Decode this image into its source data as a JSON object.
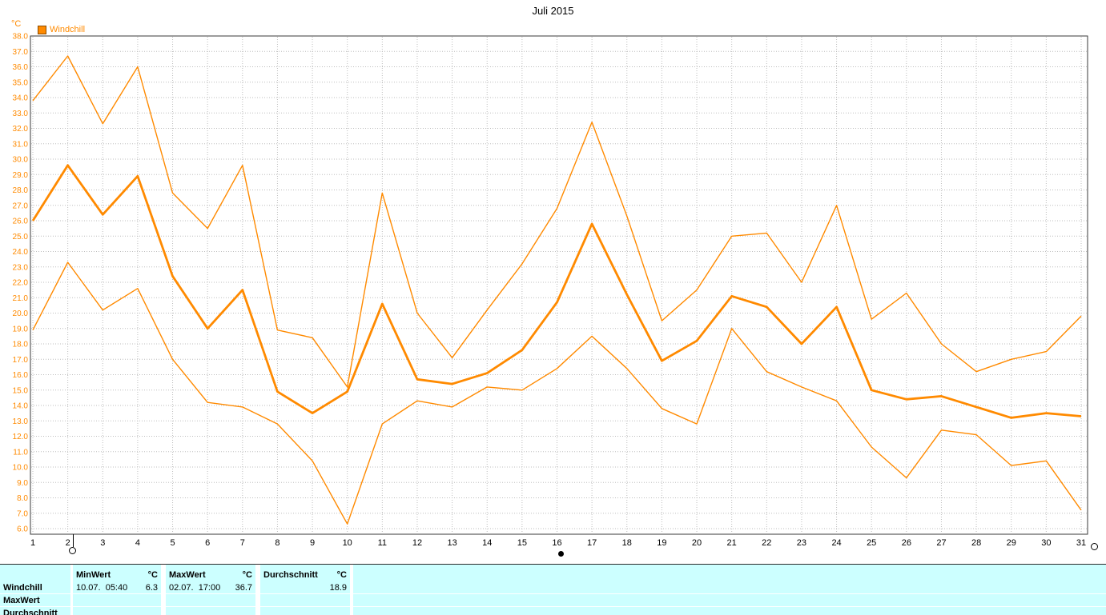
{
  "title": "Juli 2015",
  "y_unit": "°C",
  "legend": {
    "label": "Windchill",
    "color": "#ff8a00"
  },
  "chart_data": {
    "type": "line",
    "title": "Juli 2015",
    "xlabel": "",
    "ylabel": "°C",
    "ylim": [
      6,
      38
    ],
    "ytick_step": 1,
    "grid": true,
    "line_color": "#ff8a00",
    "x": [
      1,
      2,
      3,
      4,
      5,
      6,
      7,
      8,
      9,
      10,
      11,
      12,
      13,
      14,
      15,
      16,
      17,
      18,
      19,
      20,
      21,
      22,
      23,
      24,
      25,
      26,
      27,
      28,
      29,
      30,
      31
    ],
    "series": [
      {
        "name": "MaxWert",
        "thick": false,
        "values": [
          33.8,
          36.7,
          32.3,
          36.0,
          27.8,
          25.5,
          29.6,
          18.9,
          18.4,
          15.2,
          27.8,
          20.0,
          17.1,
          20.2,
          23.2,
          26.8,
          32.4,
          26.3,
          19.5,
          21.5,
          25.0,
          25.2,
          22.0,
          27.0,
          19.6,
          21.3,
          18.0,
          16.2,
          17.0,
          17.5,
          19.8
        ]
      },
      {
        "name": "Durchschnitt",
        "thick": true,
        "values": [
          26.0,
          29.6,
          26.4,
          28.9,
          22.4,
          19.0,
          21.5,
          14.9,
          13.5,
          14.9,
          20.6,
          15.7,
          15.4,
          16.1,
          17.6,
          20.7,
          25.8,
          21.2,
          16.9,
          18.2,
          21.1,
          20.4,
          18.0,
          20.4,
          15.0,
          14.4,
          14.6,
          13.9,
          13.2,
          13.5,
          13.3
        ]
      },
      {
        "name": "MinWert",
        "thick": false,
        "values": [
          18.9,
          23.3,
          20.2,
          21.6,
          17.0,
          14.2,
          13.9,
          12.8,
          10.4,
          6.3,
          12.8,
          14.3,
          13.9,
          15.2,
          15.0,
          16.4,
          18.5,
          16.4,
          13.8,
          12.8,
          19.0,
          16.2,
          15.2,
          14.3,
          11.3,
          9.3,
          12.4,
          12.1,
          10.1,
          10.4,
          7.2
        ]
      }
    ]
  },
  "stats_table": {
    "row_labels": [
      "Windchill",
      "MaxWert",
      "Durchschnitt"
    ],
    "columns": [
      {
        "header": "MinWert",
        "unit": "°C",
        "date": "10.07.  05:40",
        "value": "6.3"
      },
      {
        "header": "MaxWert",
        "unit": "°C",
        "date": "02.07.  17:00",
        "value": "36.7"
      },
      {
        "header": "Durchschnitt",
        "unit": "°C",
        "date": "",
        "value": "18.9"
      }
    ]
  }
}
